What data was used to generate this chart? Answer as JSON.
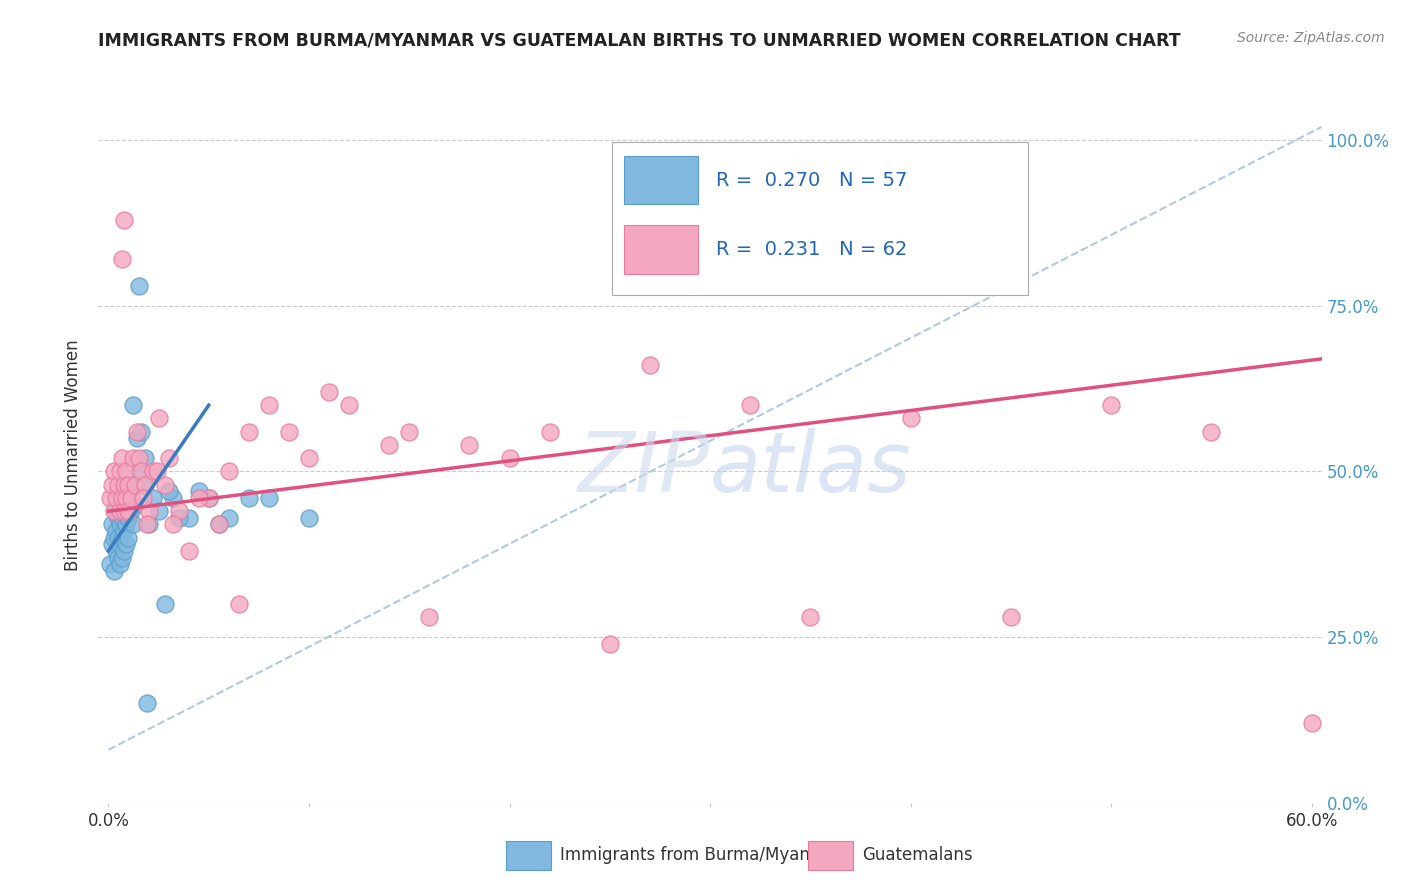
{
  "title": "IMMIGRANTS FROM BURMA/MYANMAR VS GUATEMALAN BIRTHS TO UNMARRIED WOMEN CORRELATION CHART",
  "source": "Source: ZipAtlas.com",
  "ylabel": "Births to Unmarried Women",
  "ytick_vals": [
    0.0,
    0.25,
    0.5,
    0.75,
    1.0
  ],
  "ytick_labels": [
    "0.0%",
    "25.0%",
    "50.0%",
    "75.0%",
    "100.0%"
  ],
  "xtick_vals": [
    0.0,
    0.1,
    0.2,
    0.3,
    0.4,
    0.5,
    0.6
  ],
  "xtick_labels": [
    "0.0%",
    "",
    "",
    "",
    "",
    "",
    "60.0%"
  ],
  "legend1_R": "0.270",
  "legend1_N": "57",
  "legend2_R": "0.231",
  "legend2_N": "62",
  "blue_scatter_color": "#80b8e0",
  "blue_edge_color": "#5a9ec8",
  "pink_scatter_color": "#f4a8bf",
  "pink_edge_color": "#e87aa0",
  "trend_blue": "#3a7bbf",
  "trend_pink": "#e05080",
  "dash_color": "#b0c8e0",
  "watermark_color": "#d0dff0",
  "blue_scatter_x": [
    0.001,
    0.002,
    0.002,
    0.003,
    0.003,
    0.004,
    0.004,
    0.004,
    0.005,
    0.005,
    0.005,
    0.005,
    0.006,
    0.006,
    0.006,
    0.006,
    0.007,
    0.007,
    0.007,
    0.007,
    0.008,
    0.008,
    0.008,
    0.008,
    0.009,
    0.009,
    0.009,
    0.01,
    0.01,
    0.01,
    0.011,
    0.011,
    0.012,
    0.012,
    0.013,
    0.014,
    0.015,
    0.016,
    0.017,
    0.018,
    0.02,
    0.022,
    0.025,
    0.028,
    0.032,
    0.04,
    0.05,
    0.06,
    0.08,
    0.1,
    0.03,
    0.035,
    0.045,
    0.055,
    0.07,
    0.015,
    0.019
  ],
  "blue_scatter_y": [
    0.36,
    0.39,
    0.42,
    0.35,
    0.4,
    0.38,
    0.41,
    0.44,
    0.37,
    0.4,
    0.43,
    0.46,
    0.36,
    0.39,
    0.42,
    0.45,
    0.37,
    0.4,
    0.43,
    0.46,
    0.38,
    0.41,
    0.44,
    0.48,
    0.39,
    0.42,
    0.45,
    0.4,
    0.43,
    0.46,
    0.44,
    0.47,
    0.42,
    0.6,
    0.45,
    0.55,
    0.5,
    0.56,
    0.48,
    0.52,
    0.42,
    0.46,
    0.44,
    0.3,
    0.46,
    0.43,
    0.46,
    0.43,
    0.46,
    0.43,
    0.47,
    0.43,
    0.47,
    0.42,
    0.46,
    0.78,
    0.15
  ],
  "pink_scatter_x": [
    0.001,
    0.002,
    0.003,
    0.003,
    0.004,
    0.005,
    0.006,
    0.006,
    0.007,
    0.007,
    0.008,
    0.008,
    0.009,
    0.009,
    0.01,
    0.01,
    0.011,
    0.012,
    0.013,
    0.014,
    0.015,
    0.016,
    0.018,
    0.02,
    0.022,
    0.025,
    0.028,
    0.03,
    0.035,
    0.04,
    0.05,
    0.06,
    0.07,
    0.08,
    0.1,
    0.12,
    0.15,
    0.18,
    0.22,
    0.27,
    0.32,
    0.4,
    0.5,
    0.6,
    0.017,
    0.019,
    0.024,
    0.032,
    0.045,
    0.055,
    0.065,
    0.09,
    0.11,
    0.14,
    0.16,
    0.2,
    0.25,
    0.35,
    0.45,
    0.55,
    0.007,
    0.008
  ],
  "pink_scatter_y": [
    0.46,
    0.48,
    0.44,
    0.5,
    0.46,
    0.48,
    0.44,
    0.5,
    0.46,
    0.52,
    0.44,
    0.48,
    0.46,
    0.5,
    0.44,
    0.48,
    0.46,
    0.52,
    0.48,
    0.56,
    0.52,
    0.5,
    0.48,
    0.44,
    0.5,
    0.58,
    0.48,
    0.52,
    0.44,
    0.38,
    0.46,
    0.5,
    0.56,
    0.6,
    0.52,
    0.6,
    0.56,
    0.54,
    0.56,
    0.66,
    0.6,
    0.58,
    0.6,
    0.12,
    0.46,
    0.42,
    0.5,
    0.42,
    0.46,
    0.42,
    0.3,
    0.56,
    0.62,
    0.54,
    0.28,
    0.52,
    0.24,
    0.28,
    0.28,
    0.56,
    0.82,
    0.88
  ],
  "xlim": [
    -0.005,
    0.605
  ],
  "ylim": [
    0.0,
    1.05
  ],
  "blue_trend_x": [
    0.0,
    0.05
  ],
  "blue_trend_y": [
    0.38,
    0.6
  ],
  "pink_trend_x": [
    0.0,
    0.605
  ],
  "pink_trend_y": [
    0.44,
    0.67
  ],
  "dash_line_x": [
    0.0,
    0.605
  ],
  "dash_line_y": [
    0.08,
    1.02
  ]
}
